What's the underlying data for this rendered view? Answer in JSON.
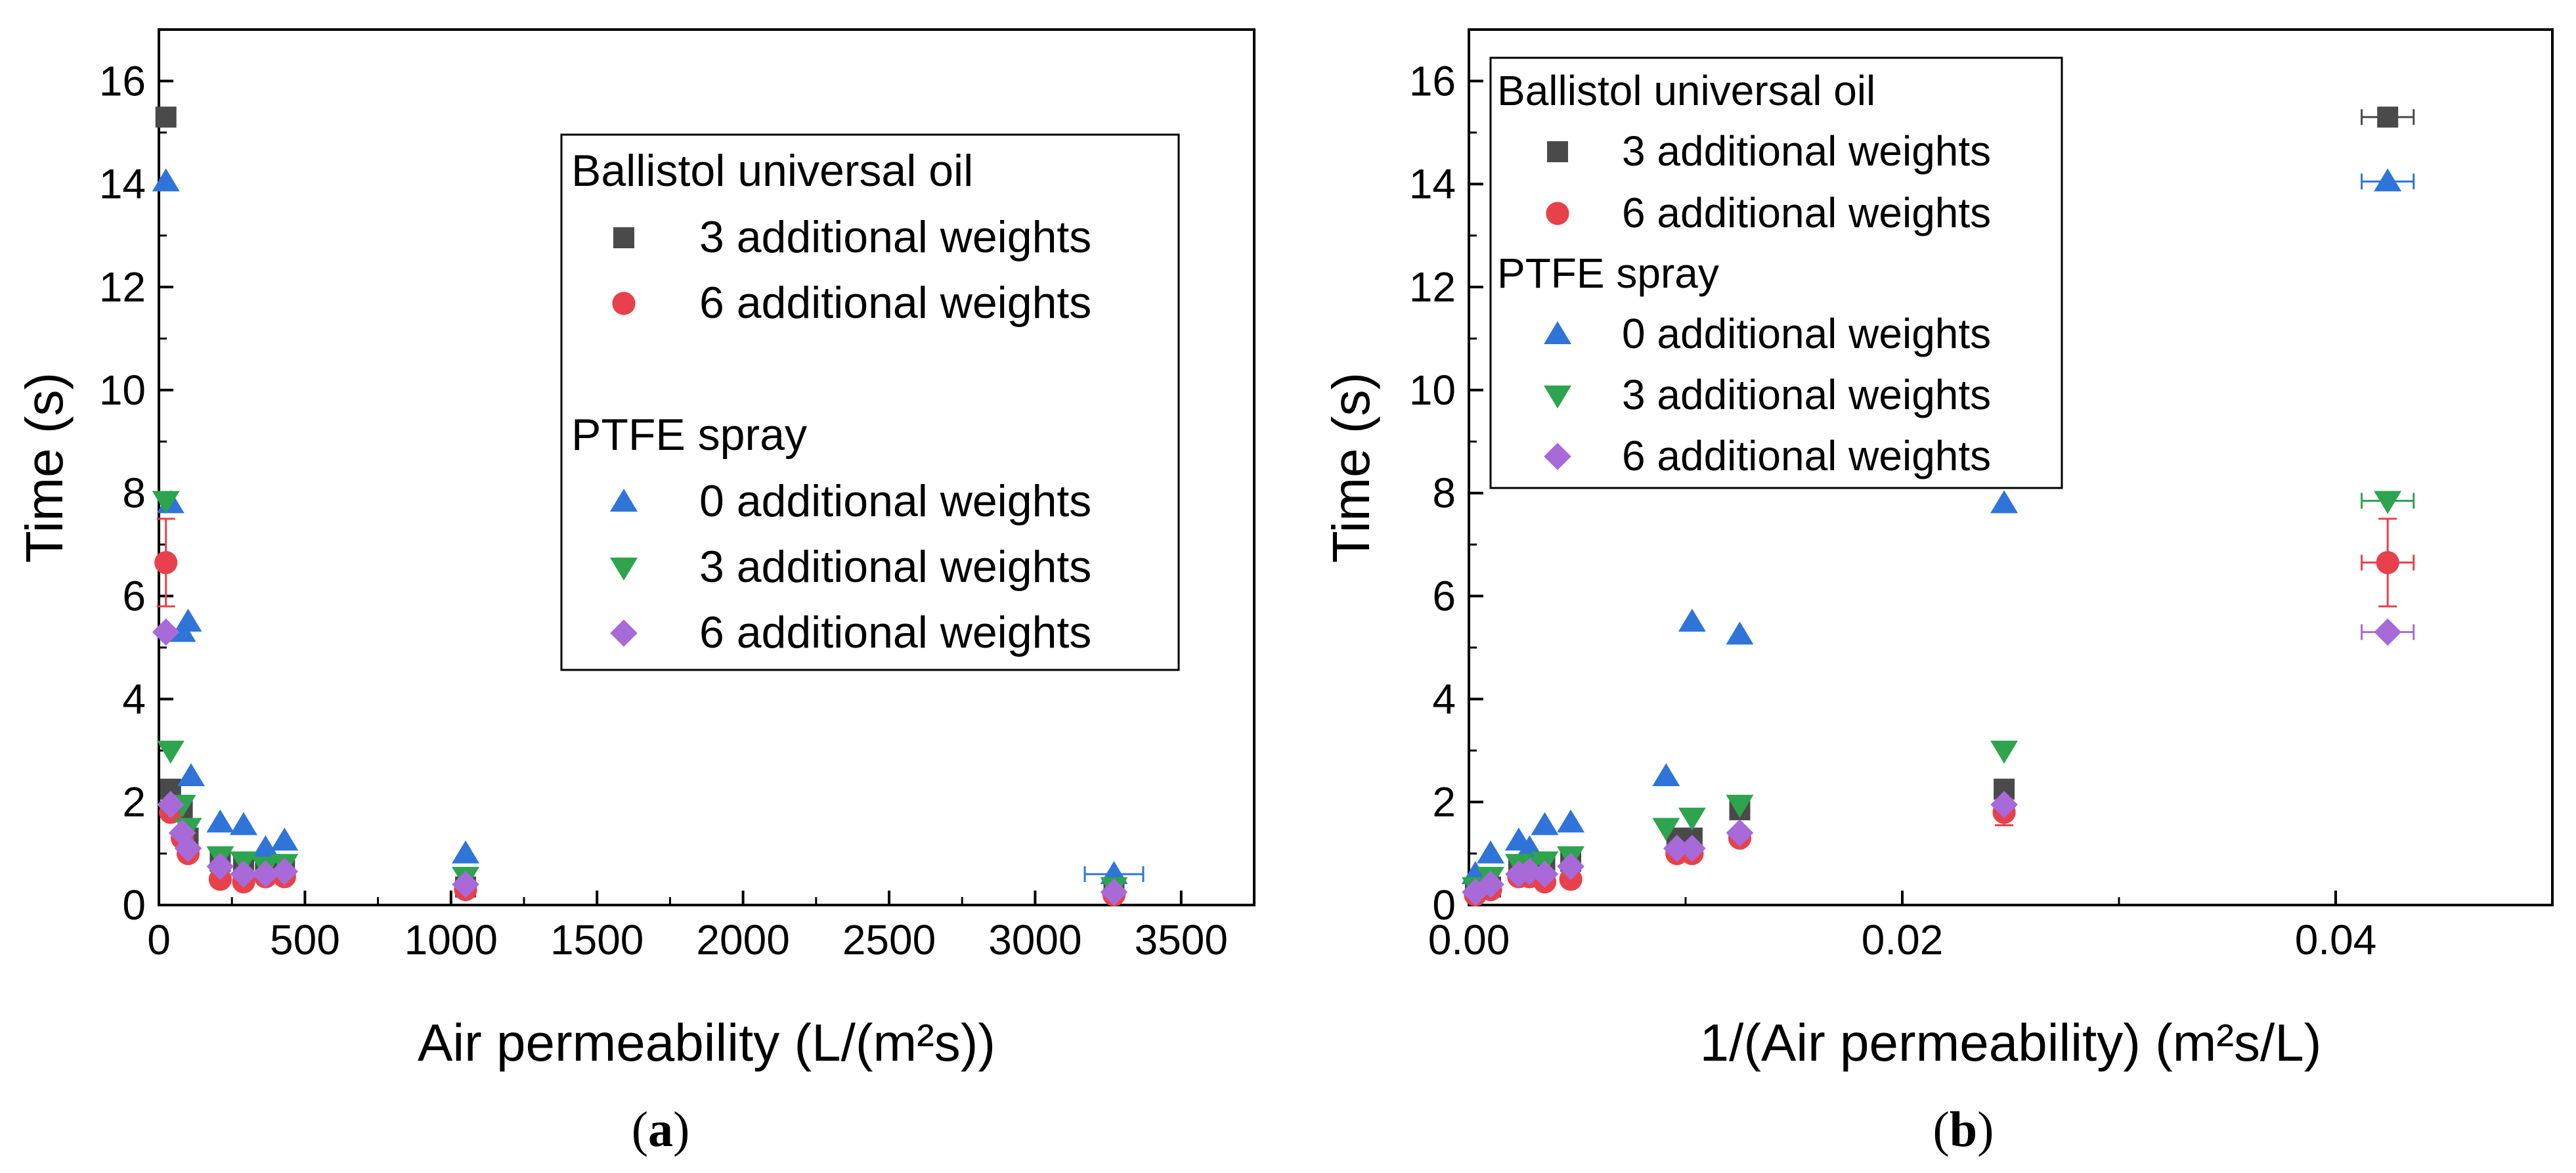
{
  "colors": {
    "ballistol_3": "#4a4a4a",
    "ballistol_6": "#e8414b",
    "ptfe_0": "#2f74d8",
    "ptfe_3": "#2ea44f",
    "ptfe_6": "#a76ad8"
  },
  "panels": [
    {
      "caption_open": "(",
      "caption_letter": "a",
      "caption_close": ")"
    },
    {
      "caption_open": "(",
      "caption_letter": "b",
      "caption_close": ")"
    }
  ],
  "legends": [
    {
      "header_1": "Ballistol universal oil",
      "items_1": [
        "3 additional weights",
        "6 additional weights"
      ],
      "header_2": "PTFE spray",
      "items_2": [
        "0 additional weights",
        "3 additional weights",
        "6 additional weights"
      ]
    },
    {
      "header_1": "Ballistol universal oil",
      "items_1": [
        "3 additional weights",
        "6 additional weights"
      ],
      "header_2": "PTFE spray",
      "items_2": [
        "0 additional weights",
        "3 additional weights",
        "6 additional weights"
      ]
    }
  ],
  "chart_data": [
    {
      "type": "scatter",
      "title": "",
      "xlabel": "Air permeability (L/(m²s))",
      "ylabel": "Time (s)",
      "xlim": [
        0,
        3750
      ],
      "ylim": [
        0,
        17
      ],
      "xticks": [
        0,
        500,
        1000,
        1500,
        2000,
        2500,
        3000,
        3500
      ],
      "yticks": [
        0,
        2,
        4,
        6,
        8,
        10,
        12,
        14,
        16
      ],
      "legend_position": "top-right",
      "series": [
        {
          "name": "3 additional weights",
          "group": "Ballistol universal oil",
          "marker": "square",
          "color_key": "ballistol_3",
          "points": [
            [
              24,
              15.3
            ],
            [
              40,
              2.25
            ],
            [
              80,
              1.85
            ],
            [
              100,
              1.3
            ],
            [
              210,
              0.85
            ],
            [
              290,
              0.75
            ],
            [
              365,
              0.8
            ],
            [
              430,
              0.75
            ],
            [
              1050,
              0.35
            ],
            [
              3270,
              0.3
            ]
          ]
        },
        {
          "name": "6 additional weights",
          "group": "Ballistol universal oil",
          "marker": "circle",
          "color_key": "ballistol_6",
          "points": [
            [
              24,
              6.65
            ],
            [
              40,
              1.8
            ],
            [
              80,
              1.3
            ],
            [
              100,
              1.0
            ],
            [
              210,
              0.5
            ],
            [
              290,
              0.45
            ],
            [
              365,
              0.55
            ],
            [
              430,
              0.55
            ],
            [
              1050,
              0.3
            ],
            [
              3270,
              0.2
            ]
          ],
          "yerr_points": [
            [
              24,
              0.85
            ]
          ]
        },
        {
          "name": "0 additional weights",
          "group": "PTFE spray",
          "marker": "triangle-up",
          "color_key": "ptfe_0",
          "points": [
            [
              24,
              14.05
            ],
            [
              40,
              7.8
            ],
            [
              80,
              5.3
            ],
            [
              100,
              5.5
            ],
            [
              110,
              2.5
            ],
            [
              210,
              1.6
            ],
            [
              290,
              1.55
            ],
            [
              365,
              1.1
            ],
            [
              430,
              1.25
            ],
            [
              1050,
              1.0
            ],
            [
              3270,
              0.6
            ]
          ],
          "xerr_points": [
            [
              3270,
              100
            ]
          ]
        },
        {
          "name": "3 additional weights",
          "group": "PTFE spray",
          "marker": "triangle-down",
          "color_key": "ptfe_3",
          "points": [
            [
              24,
              7.85
            ],
            [
              40,
              3.0
            ],
            [
              80,
              1.95
            ],
            [
              100,
              1.5
            ],
            [
              210,
              0.95
            ],
            [
              290,
              0.85
            ],
            [
              365,
              0.75
            ],
            [
              430,
              0.8
            ],
            [
              1050,
              0.55
            ],
            [
              3270,
              0.35
            ]
          ]
        },
        {
          "name": "6 additional weights",
          "group": "PTFE spray",
          "marker": "diamond",
          "color_key": "ptfe_6",
          "points": [
            [
              24,
              5.3
            ],
            [
              40,
              1.95
            ],
            [
              80,
              1.4
            ],
            [
              100,
              1.1
            ],
            [
              210,
              0.75
            ],
            [
              290,
              0.6
            ],
            [
              365,
              0.6
            ],
            [
              430,
              0.65
            ],
            [
              1050,
              0.4
            ],
            [
              3270,
              0.25
            ]
          ]
        }
      ]
    },
    {
      "type": "scatter",
      "title": "",
      "xlabel": "1/(Air permeability) (m²s/L)",
      "ylabel": "Time (s)",
      "xlim": [
        0,
        0.05
      ],
      "ylim": [
        0,
        17
      ],
      "xticks": [
        0.0,
        0.02,
        0.04
      ],
      "xtick_labels": [
        "0.00",
        "0.02",
        "0.04"
      ],
      "yticks": [
        0,
        2,
        4,
        6,
        8,
        10,
        12,
        14,
        16
      ],
      "legend_position": "top-left",
      "series": [
        {
          "name": "3 additional weights",
          "group": "Ballistol universal oil",
          "marker": "square",
          "color_key": "ballistol_3",
          "points": [
            [
              0.0003,
              0.3
            ],
            [
              0.001,
              0.35
            ],
            [
              0.0023,
              0.75
            ],
            [
              0.0028,
              0.8
            ],
            [
              0.0035,
              0.75
            ],
            [
              0.0047,
              0.85
            ],
            [
              0.0096,
              1.3
            ],
            [
              0.0103,
              1.3
            ],
            [
              0.0125,
              1.85
            ],
            [
              0.0247,
              2.25
            ],
            [
              0.0424,
              15.3
            ]
          ],
          "xerr_points": [
            [
              0.0424,
              0.0012
            ]
          ]
        },
        {
          "name": "6 additional weights",
          "group": "Ballistol universal oil",
          "marker": "circle",
          "color_key": "ballistol_6",
          "points": [
            [
              0.0003,
              0.2
            ],
            [
              0.001,
              0.3
            ],
            [
              0.0023,
              0.55
            ],
            [
              0.0028,
              0.55
            ],
            [
              0.0035,
              0.45
            ],
            [
              0.0047,
              0.5
            ],
            [
              0.0096,
              1.0
            ],
            [
              0.0103,
              1.0
            ],
            [
              0.0125,
              1.3
            ],
            [
              0.0247,
              1.8
            ],
            [
              0.0424,
              6.65
            ]
          ],
          "xerr_points": [
            [
              0.0424,
              0.0012
            ]
          ],
          "yerr_points": [
            [
              0.0424,
              0.85
            ],
            [
              0.0247,
              0.25
            ]
          ]
        },
        {
          "name": "0 additional weights",
          "group": "PTFE spray",
          "marker": "triangle-up",
          "color_key": "ptfe_0",
          "points": [
            [
              0.0003,
              0.6
            ],
            [
              0.001,
              1.0
            ],
            [
              0.0023,
              1.25
            ],
            [
              0.0028,
              1.1
            ],
            [
              0.0035,
              1.55
            ],
            [
              0.0047,
              1.6
            ],
            [
              0.0091,
              2.5
            ],
            [
              0.0103,
              5.5
            ],
            [
              0.0125,
              5.25
            ],
            [
              0.0247,
              7.8
            ],
            [
              0.0424,
              14.05
            ]
          ],
          "xerr_points": [
            [
              0.0424,
              0.0012
            ]
          ]
        },
        {
          "name": "3 additional weights",
          "group": "PTFE spray",
          "marker": "triangle-down",
          "color_key": "ptfe_3",
          "points": [
            [
              0.0003,
              0.35
            ],
            [
              0.001,
              0.55
            ],
            [
              0.0023,
              0.8
            ],
            [
              0.0028,
              0.75
            ],
            [
              0.0035,
              0.85
            ],
            [
              0.0047,
              0.95
            ],
            [
              0.0091,
              1.5
            ],
            [
              0.0103,
              1.7
            ],
            [
              0.0125,
              1.95
            ],
            [
              0.0247,
              3.0
            ],
            [
              0.0424,
              7.85
            ]
          ],
          "xerr_points": [
            [
              0.0424,
              0.0012
            ]
          ]
        },
        {
          "name": "6 additional weights",
          "group": "PTFE spray",
          "marker": "diamond",
          "color_key": "ptfe_6",
          "points": [
            [
              0.0003,
              0.25
            ],
            [
              0.001,
              0.4
            ],
            [
              0.0023,
              0.6
            ],
            [
              0.0028,
              0.65
            ],
            [
              0.0035,
              0.6
            ],
            [
              0.0047,
              0.75
            ],
            [
              0.0096,
              1.1
            ],
            [
              0.0103,
              1.1
            ],
            [
              0.0125,
              1.4
            ],
            [
              0.0247,
              1.95
            ],
            [
              0.0424,
              5.3
            ]
          ],
          "xerr_points": [
            [
              0.0424,
              0.0012
            ]
          ]
        }
      ]
    }
  ]
}
